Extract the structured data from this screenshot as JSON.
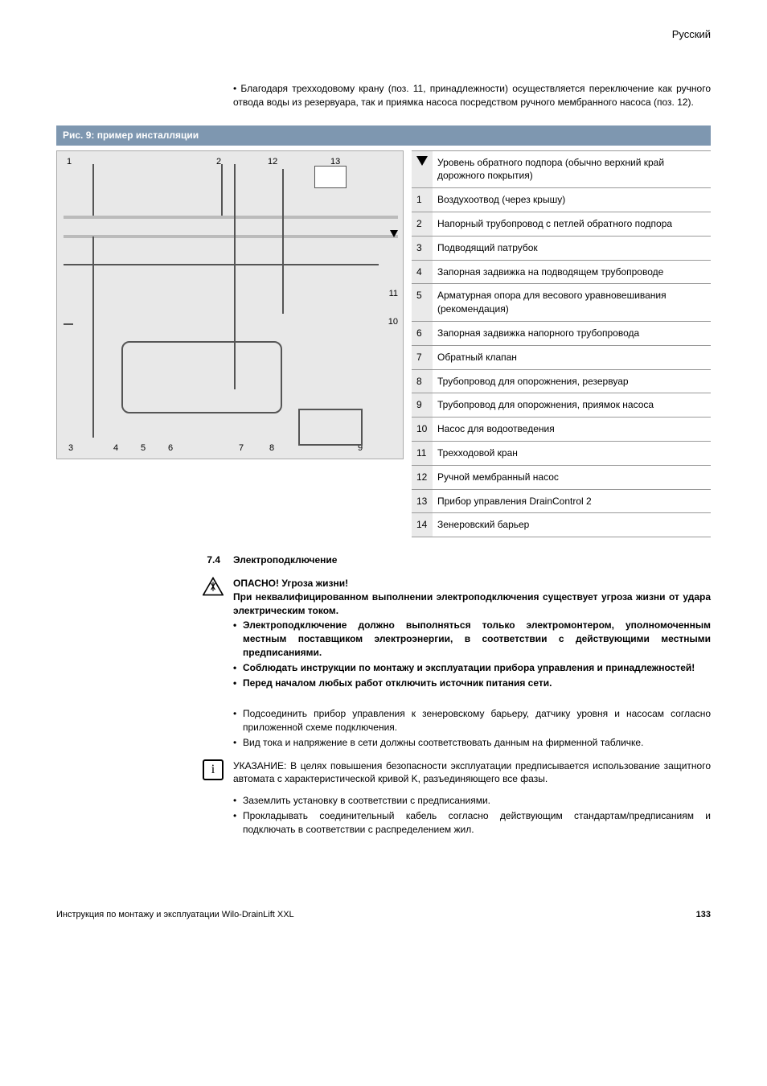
{
  "header": {
    "language": "Русский"
  },
  "intro": {
    "bullet": "Благодаря трехходовому крану (поз. 11, принадлежности) осуществляется переключение как ручного отвода воды из резервуара, так и приямка насоса посредством ручного мембранного насоса (поз. 12)."
  },
  "figure": {
    "title": "Рис. 9: пример инсталляции",
    "diagram_labels": {
      "top": [
        "1",
        "2",
        "12",
        "13"
      ],
      "right": [
        "11",
        "10"
      ],
      "bottom": [
        "3",
        "4",
        "5",
        "6",
        "7",
        "8",
        "9"
      ]
    }
  },
  "legend": {
    "rows": [
      {
        "num": "▼",
        "text": "Уровень обратного подпора (обычно верхний край дорожного покрытия)"
      },
      {
        "num": "1",
        "text": "Воздухоотвод (через крышу)"
      },
      {
        "num": "2",
        "text": "Напорный трубопровод с петлей обратного подпора"
      },
      {
        "num": "3",
        "text": "Подводящий патрубок"
      },
      {
        "num": "4",
        "text": "Запорная задвижка на подводящем трубопроводе"
      },
      {
        "num": "5",
        "text": "Арматурная опора для весового уравновешивания\n(рекомендация)"
      },
      {
        "num": "6",
        "text": "Запорная задвижка напорного трубопровода"
      },
      {
        "num": "7",
        "text": "Обратный клапан"
      },
      {
        "num": "8",
        "text": "Трубопровод для опорожнения, резервуар"
      },
      {
        "num": "9",
        "text": "Трубопровод для опорожнения, приямок насоса"
      },
      {
        "num": "10",
        "text": "Насос для водоотведения"
      },
      {
        "num": "11",
        "text": "Трехходовой кран"
      },
      {
        "num": "12",
        "text": "Ручной мембранный насос"
      },
      {
        "num": "13",
        "text": "Прибор управления DrainControl 2"
      },
      {
        "num": "14",
        "text": "Зенеровский барьер"
      }
    ]
  },
  "section74": {
    "num": "7.4",
    "title": "Электроподключение",
    "danger_heading": "ОПАСНО! Угроза жизни!",
    "danger_para": "При неквалифицированном выполнении электроподключения существует угроза жизни от удара электрическим током.",
    "bold_bullets": [
      "Электроподключение должно выполняться только электромонтером, уполномоченным местным поставщиком электроэнергии, в соответствии с действующими местными предписаниями.",
      "Соблюдать инструкции по монтажу и эксплуатации прибора управления и принадлежностей!",
      "Перед началом любых работ отключить источник питания сети."
    ],
    "plain_bullets_1": [
      "Подсоединить прибор управления к зенеровскому барьеру, датчику уровня и насосам согласно приложенной схеме подключения.",
      "Вид тока и напряжение в сети должны соответствовать данным на фирменной табличке."
    ],
    "info_note": "УКАЗАНИЕ: В целях повышения безопасности эксплуатации предписывается использование защитного автомата с характеристической кривой K, разъединяющего все фазы.",
    "plain_bullets_2": [
      "Заземлить установку в соответствии с предписаниями.",
      "Прокладывать соединительный кабель согласно действующим стандартам/предписаниям и подключать в соответствии с распределением жил."
    ]
  },
  "footer": {
    "left": "Инструкция по монтажу и эксплуатации Wilo-DrainLift XXL",
    "page": "133"
  },
  "colors": {
    "header_bar": "#7e97b0",
    "diagram_bg": "#e8e8e8",
    "legend_num_bg": "#eaeaea"
  }
}
